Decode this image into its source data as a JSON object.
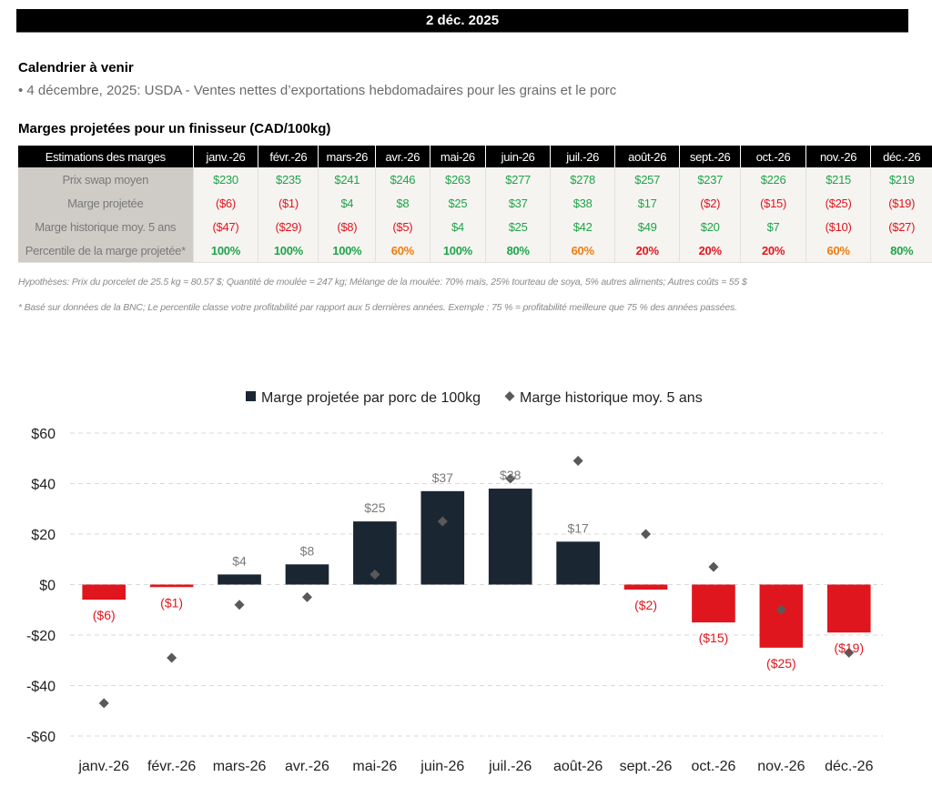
{
  "header": {
    "date": "2 déc. 2025"
  },
  "calendar": {
    "title": "Calendrier à venir",
    "items": [
      "• 4 décembre, 2025: USDA - Ventes nettes d’exportations hebdomadaires pour les grains et le porc"
    ]
  },
  "margins_table": {
    "title": "Marges projetées pour un finisseur (CAD/100kg)",
    "header_label": "Estimations des marges",
    "months": [
      "janv.-26",
      "févr.-26",
      "mars-26",
      "avr.-26",
      "mai-26",
      "juin-26",
      "juil.-26",
      "août-26",
      "sept.-26",
      "oct.-26",
      "nov.-26",
      "déc.-26"
    ],
    "rows": [
      {
        "label": "Prix swap moyen",
        "values": [
          "$230",
          "$235",
          "$241",
          "$246",
          "$263",
          "$277",
          "$278",
          "$257",
          "$237",
          "$226",
          "$215",
          "$219"
        ],
        "colors": [
          "green",
          "green",
          "green",
          "green",
          "green",
          "green",
          "green",
          "green",
          "green",
          "green",
          "green",
          "green"
        ]
      },
      {
        "label": "Marge projetée",
        "values": [
          "($6)",
          "($1)",
          "$4",
          "$8",
          "$25",
          "$37",
          "$38",
          "$17",
          "($2)",
          "($15)",
          "($25)",
          "($19)"
        ],
        "colors": [
          "red",
          "red",
          "green",
          "green",
          "green",
          "green",
          "green",
          "green",
          "red",
          "red",
          "red",
          "red"
        ]
      },
      {
        "label": "Marge historique moy. 5 ans",
        "values": [
          "($47)",
          "($29)",
          "($8)",
          "($5)",
          "$4",
          "$25",
          "$42",
          "$49",
          "$20",
          "$7",
          "($10)",
          "($27)"
        ],
        "colors": [
          "red",
          "red",
          "red",
          "red",
          "green",
          "green",
          "green",
          "green",
          "green",
          "green",
          "red",
          "red"
        ]
      },
      {
        "label": "Percentile de la marge projetée*",
        "values": [
          "100%",
          "100%",
          "100%",
          "60%",
          "100%",
          "80%",
          "60%",
          "20%",
          "20%",
          "20%",
          "60%",
          "80%"
        ],
        "colors": [
          "green",
          "green",
          "green",
          "orange",
          "green",
          "green",
          "orange",
          "red",
          "red",
          "red",
          "orange",
          "green"
        ],
        "bold": true
      }
    ],
    "notes": [
      "Hypothèses: Prix du porcelet de 25.5 kg = 80.57 $; Quantité de moulée = 247 kg; Mélange de la moulée: 70% maïs, 25% tourteau de soya, 5% autres aliments; Autres coûts = 55 $",
      "* Basé sur données de la BNC; Le percentile classe votre profitabilité par rapport aux 5 dernières années. Exemple : 75 % = profitabilité meilleure que 75 % des années passées."
    ]
  },
  "colors": {
    "green": "#1ea54a",
    "red": "#e0161e",
    "orange": "#f07c10",
    "bar_positive": "#1b2633",
    "bar_negative": "#e0161e",
    "marker": "#595959"
  },
  "chart_data": {
    "type": "bar",
    "title": "",
    "xlabel": "",
    "ylabel": "",
    "categories": [
      "janv.-26",
      "févr.-26",
      "mars-26",
      "avr.-26",
      "mai-26",
      "juin-26",
      "juil.-26",
      "août-26",
      "sept.-26",
      "oct.-26",
      "nov.-26",
      "déc.-26"
    ],
    "series": [
      {
        "name": "Marge projetée par porc de 100kg",
        "kind": "bar",
        "values": [
          -6,
          -1,
          4,
          8,
          25,
          37,
          38,
          17,
          -2,
          -15,
          -25,
          -19
        ],
        "labels": [
          "($6)",
          "($1)",
          "$4",
          "$8",
          "$25",
          "$37",
          "$38",
          "$17",
          "($2)",
          "($15)",
          "($25)",
          "($19)"
        ]
      },
      {
        "name": "Marge historique moy. 5 ans",
        "kind": "scatter",
        "marker": "diamond",
        "values": [
          -47,
          -29,
          -8,
          -5,
          4,
          25,
          42,
          49,
          20,
          7,
          -10,
          -27
        ]
      }
    ],
    "ylim": [
      -60,
      60
    ],
    "yticks": [
      60,
      40,
      20,
      0,
      -20,
      -40,
      -60
    ],
    "ytick_labels": [
      "$60",
      "$40",
      "$20",
      "$0",
      "-$20",
      "-$40",
      "-$60"
    ],
    "grid": true,
    "legend_position": "top-center"
  }
}
